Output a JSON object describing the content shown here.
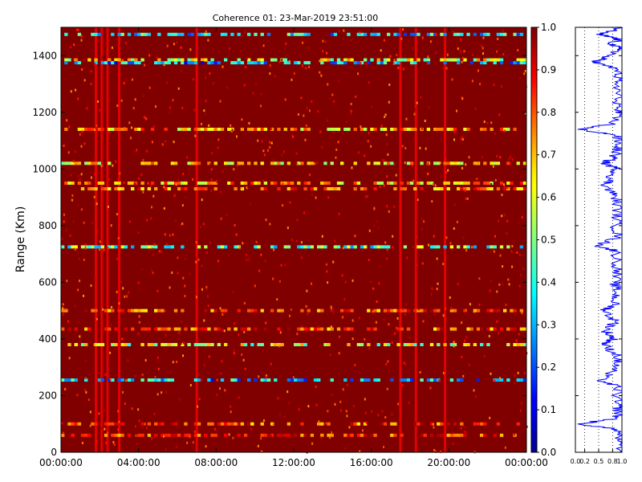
{
  "chart_data": [
    {
      "type": "heatmap",
      "title": "Coherence 01: 23-Mar-2019 23:51:00",
      "xlabel": "",
      "ylabel": "Range (Km)",
      "x_ticks": [
        "00:00:00",
        "04:00:00",
        "08:00:00",
        "12:00:00",
        "16:00:00",
        "20:00:00",
        "00:00:00"
      ],
      "xlim_hours": [
        0,
        24
      ],
      "y_ticks": [
        0,
        200,
        400,
        600,
        800,
        1000,
        1200,
        1400
      ],
      "ylim": [
        0,
        1500
      ],
      "colormap": "jet",
      "background_value": 1.0,
      "colorbar": {
        "min": 0.0,
        "max": 1.0,
        "ticks": [
          "0.0",
          "0.1",
          "0.2",
          "0.3",
          "0.4",
          "0.5",
          "0.6",
          "0.7",
          "0.8",
          "0.9",
          "1.0"
        ]
      },
      "bands": [
        {
          "range": 1475,
          "value": 0.35
        },
        {
          "range": 1385,
          "value": 0.6
        },
        {
          "range": 1375,
          "value": 0.3
        },
        {
          "range": 1140,
          "value": 0.7
        },
        {
          "range": 1020,
          "value": 0.65
        },
        {
          "range": 950,
          "value": 0.7
        },
        {
          "range": 930,
          "value": 0.75
        },
        {
          "range": 725,
          "value": 0.45
        },
        {
          "range": 500,
          "value": 0.8
        },
        {
          "range": 435,
          "value": 0.8
        },
        {
          "range": 380,
          "value": 0.55
        },
        {
          "range": 255,
          "value": 0.3
        },
        {
          "range": 100,
          "value": 0.8
        },
        {
          "range": 60,
          "value": 0.85
        }
      ],
      "vertical_stripes_hours": [
        1.8,
        2.1,
        2.4,
        3.0,
        7.0,
        17.5,
        18.3,
        19.8
      ]
    },
    {
      "type": "line",
      "xlim": [
        0.0,
        1.0
      ],
      "x_ticks": [
        "0.0",
        "0.2",
        "0.5",
        "0.8",
        "1.0"
      ],
      "ylim": [
        0,
        1500
      ],
      "color": "#0000ff",
      "profile_points": [
        [
          1500,
          0.98
        ],
        [
          1475,
          0.45
        ],
        [
          1460,
          0.9
        ],
        [
          1440,
          0.75
        ],
        [
          1420,
          0.95
        ],
        [
          1390,
          0.55
        ],
        [
          1375,
          0.4
        ],
        [
          1350,
          0.92
        ],
        [
          1300,
          0.85
        ],
        [
          1250,
          0.9
        ],
        [
          1200,
          0.86
        ],
        [
          1160,
          0.8
        ],
        [
          1140,
          0.05
        ],
        [
          1120,
          0.85
        ],
        [
          1080,
          0.9
        ],
        [
          1040,
          0.8
        ],
        [
          1020,
          0.6
        ],
        [
          1000,
          0.88
        ],
        [
          960,
          0.7
        ],
        [
          940,
          0.62
        ],
        [
          900,
          0.85
        ],
        [
          850,
          0.9
        ],
        [
          800,
          0.84
        ],
        [
          760,
          0.9
        ],
        [
          730,
          0.45
        ],
        [
          710,
          0.85
        ],
        [
          650,
          0.88
        ],
        [
          600,
          0.82
        ],
        [
          560,
          0.86
        ],
        [
          520,
          0.8
        ],
        [
          500,
          0.6
        ],
        [
          460,
          0.85
        ],
        [
          430,
          0.62
        ],
        [
          400,
          0.8
        ],
        [
          380,
          0.58
        ],
        [
          340,
          0.9
        ],
        [
          300,
          0.85
        ],
        [
          255,
          0.5
        ],
        [
          230,
          0.9
        ],
        [
          180,
          0.85
        ],
        [
          150,
          0.9
        ],
        [
          120,
          0.88
        ],
        [
          100,
          0.05
        ],
        [
          80,
          0.9
        ],
        [
          40,
          0.92
        ],
        [
          0,
          0.95
        ]
      ],
      "gridlines_x": [
        0.2,
        0.5,
        0.8
      ]
    }
  ]
}
